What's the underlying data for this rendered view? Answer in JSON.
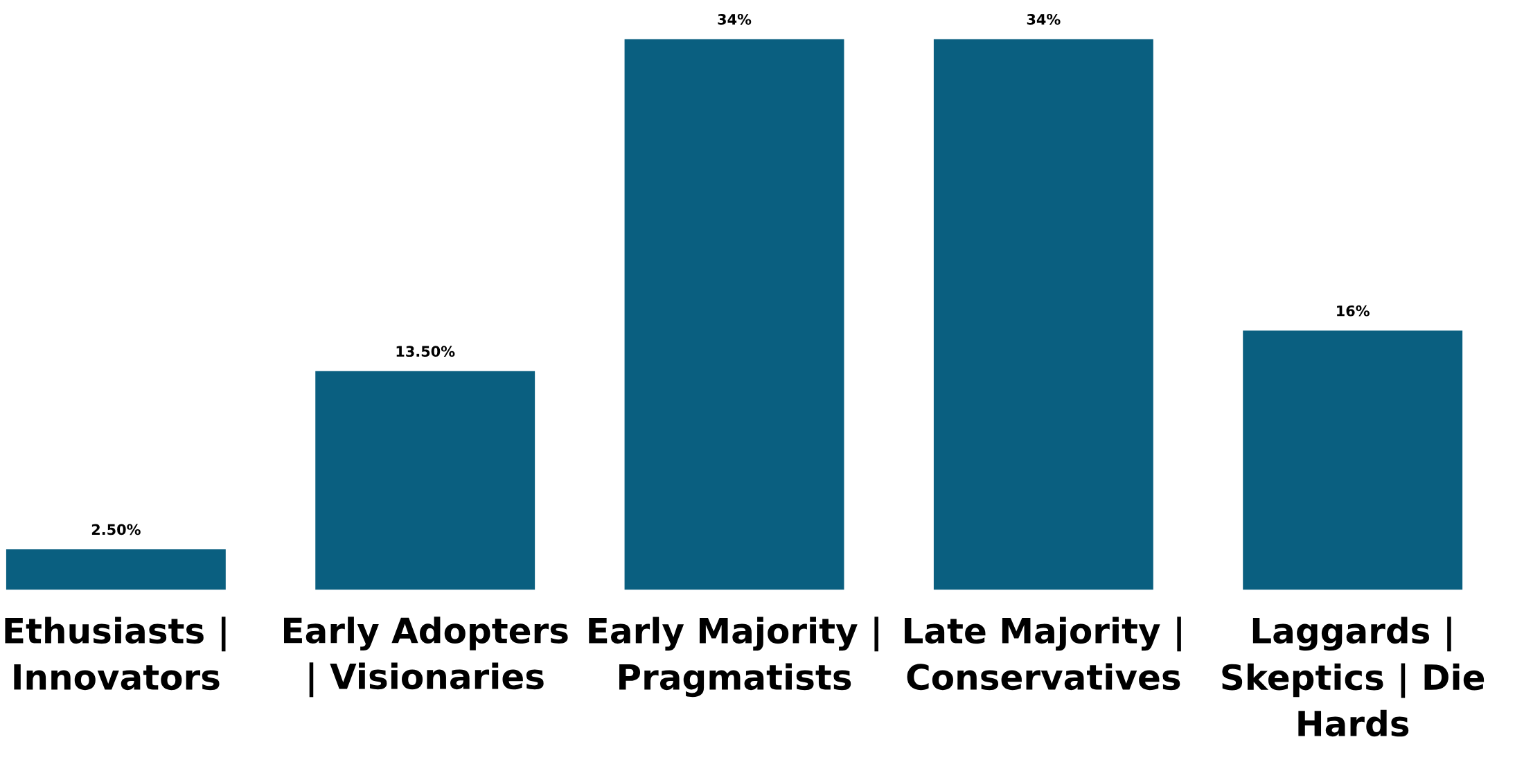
{
  "chart_data": {
    "type": "bar",
    "categories": [
      "Ethusiasts |\nInnovators",
      "Early Adopters\n| Visionaries",
      "Early Majority |\nPragmatists",
      "Late Majority |\nConservatives",
      "Laggards |\nSkeptics | Die\nHards"
    ],
    "values": [
      2.5,
      13.5,
      34,
      34,
      16
    ],
    "value_labels": [
      "2.50%",
      "13.50%",
      "34%",
      "34%",
      "16%"
    ],
    "color": "#0a5f80",
    "grid": false,
    "legend": false
  }
}
